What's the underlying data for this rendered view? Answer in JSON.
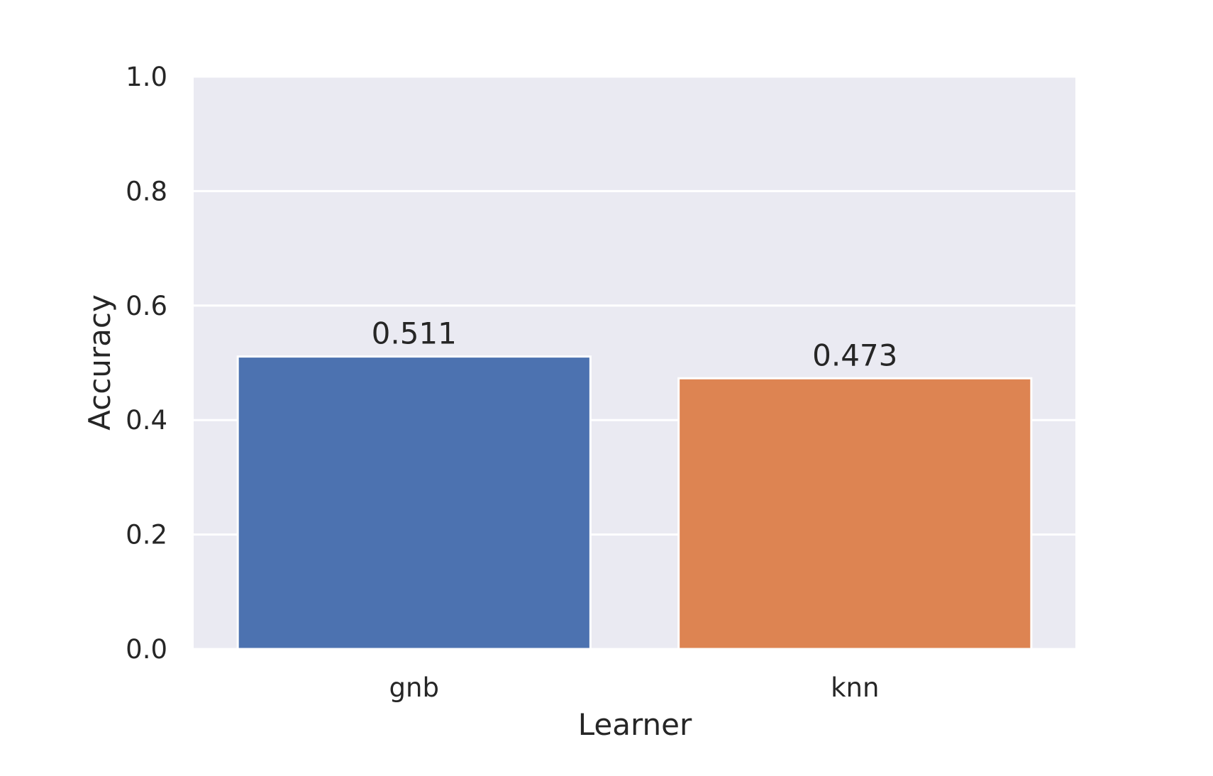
{
  "chart_data": {
    "type": "bar",
    "title": "",
    "xlabel": "Learner",
    "ylabel": "Accuracy",
    "categories": [
      "gnb",
      "knn"
    ],
    "values": [
      0.511,
      0.473
    ],
    "data_labels": [
      "0.511",
      "0.473"
    ],
    "ylim": [
      0,
      1.0
    ],
    "yticks": [
      0.0,
      0.2,
      0.4,
      0.6,
      0.8,
      1.0
    ],
    "ytick_labels": [
      "0.0",
      "0.2",
      "0.4",
      "0.6",
      "0.8",
      "1.0"
    ],
    "grid": true,
    "legend": "none",
    "colors": {
      "plot_background": "#eaeaf2",
      "grid": "#ffffff",
      "bars": [
        "#4c72b0",
        "#dd8452"
      ],
      "bar_edge": "#ffffff",
      "text": "#262626"
    }
  }
}
